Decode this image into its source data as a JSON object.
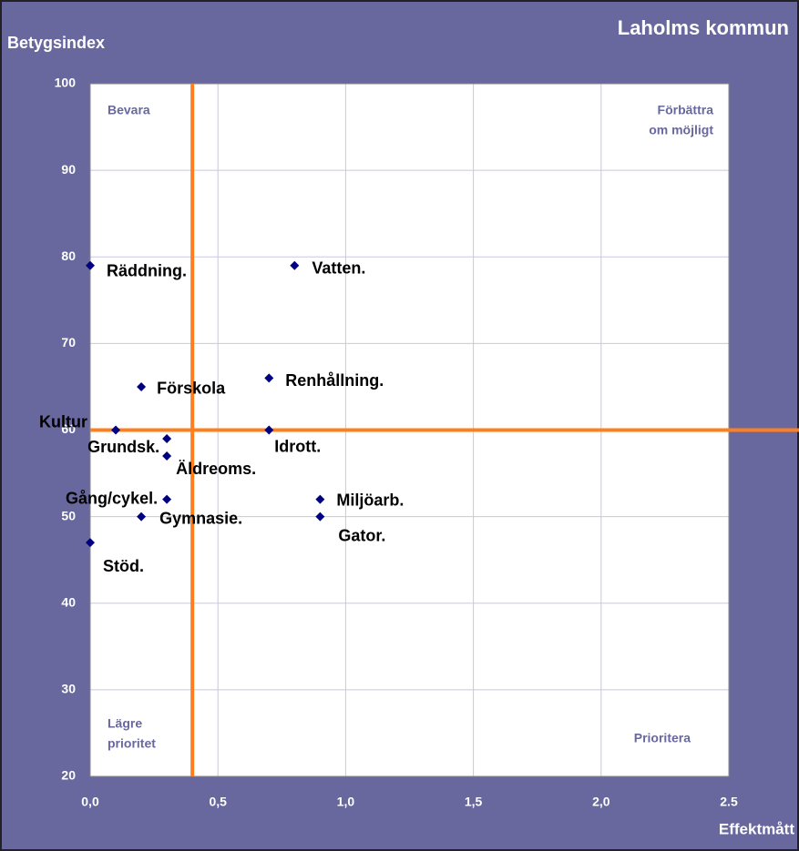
{
  "chart_data": {
    "type": "scatter",
    "title": "Laholms kommun",
    "y_label": "Betygsindex",
    "x_label": "Effektmått",
    "labels": [
      "Räddning.",
      "Vatten.",
      "Förskola",
      "Renhållning.",
      "Kultur",
      "Idrott.",
      "Grundsk.",
      "Äldreoms.",
      "Gång/cykel.",
      "Miljöarb.",
      "Gymnasie.",
      "Gator.",
      "Stöd."
    ],
    "x": [
      0,
      0.8,
      0.2,
      0.7,
      0.1,
      0.7,
      0.3,
      0.3,
      0.3,
      0.9,
      0.2,
      0.9,
      0
    ],
    "values": [
      79,
      79,
      65,
      66,
      60,
      60,
      59,
      57,
      52,
      52,
      50,
      50,
      47
    ],
    "color": "#000080",
    "xlim": [
      0,
      2.5
    ],
    "ylim": [
      20,
      100
    ],
    "xticks": [
      {
        "value": 0,
        "label": "0,0"
      },
      {
        "value": 0.5,
        "label": "0,5"
      },
      {
        "value": 1,
        "label": "1,0"
      },
      {
        "value": 1.5,
        "label": "1,5"
      },
      {
        "value": 2,
        "label": "2,0"
      },
      {
        "value": 2.5,
        "label": "2.5"
      }
    ],
    "yticks": [
      20,
      30,
      40,
      50,
      60,
      70,
      80,
      90,
      100
    ],
    "grid": true,
    "reference_lines": {
      "x": 0.4,
      "y": 60,
      "color": "#ff7f1e"
    },
    "quadrant_labels": [
      [
        "Bevara"
      ],
      [
        "Förbättra",
        "om möjligt"
      ],
      [
        "Lägre",
        "prioritet"
      ],
      [
        "Prioritera"
      ]
    ]
  }
}
